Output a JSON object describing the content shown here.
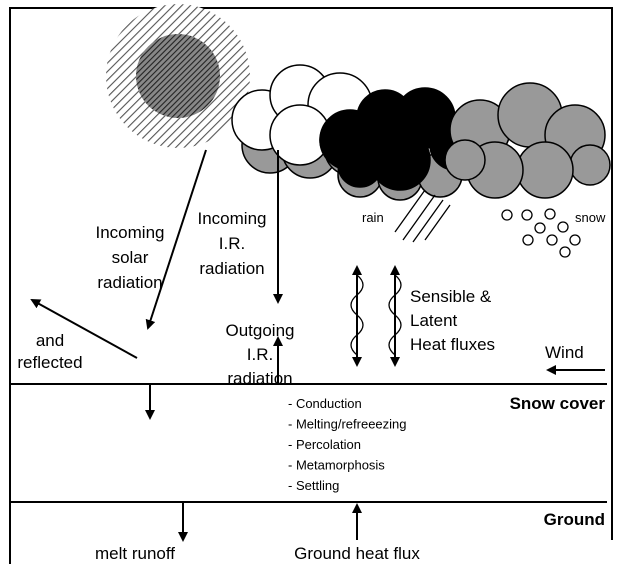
{
  "labels": {
    "incoming_solar": [
      "Incoming",
      "solar",
      "radiation"
    ],
    "reflected": [
      "and",
      "reflected"
    ],
    "incoming_ir": [
      "Incoming",
      "I.R.",
      "radiation"
    ],
    "outgoing_ir": [
      "Outgoing",
      "I.R.",
      "radiation"
    ],
    "rain": "rain",
    "snow": "snow",
    "heat_fluxes": [
      "Sensible &",
      "Latent",
      "Heat fluxes"
    ],
    "wind": "Wind",
    "snow_cover": "Snow cover",
    "processes": [
      "- Conduction",
      "- Melting/refreeezing",
      "- Percolation",
      "- Metamorphosis",
      "- Settling"
    ],
    "ground": "Ground",
    "melt_runoff": "melt runoff",
    "ground_heat_flux": "Ground heat flux"
  }
}
